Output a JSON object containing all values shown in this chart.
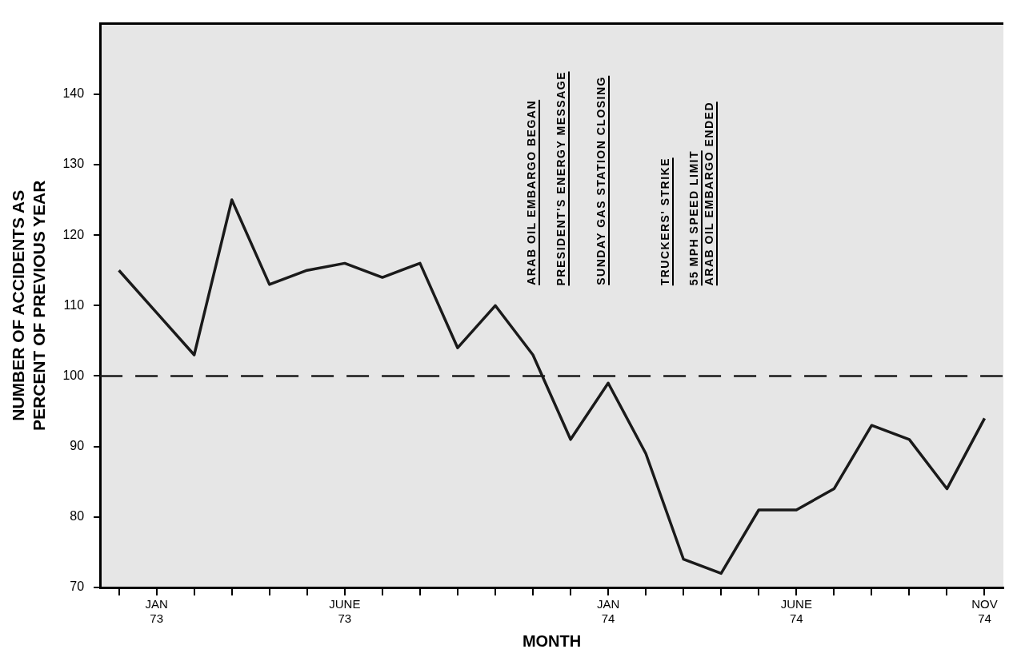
{
  "chart_data": {
    "type": "line",
    "xlabel": "MONTH",
    "ylabel": "NUMBER OF ACCIDENTS AS\nPERCENT OF PREVIOUS YEAR",
    "categories": [
      null,
      "JAN\n73",
      null,
      null,
      null,
      null,
      "JUNE\n73",
      null,
      null,
      null,
      null,
      null,
      null,
      "JAN\n74",
      null,
      null,
      null,
      null,
      "JUNE\n74",
      null,
      null,
      null,
      null,
      "NOV\n74"
    ],
    "series": [
      {
        "color": "#1a1a1a",
        "values": [
          115,
          109,
          103,
          125,
          113,
          115,
          116,
          114,
          116,
          104,
          110,
          103,
          91,
          99,
          89,
          74,
          72,
          81,
          81,
          84,
          93,
          91,
          84,
          94
        ]
      }
    ],
    "ylim": [
      70,
      150
    ],
    "yticks": [
      70,
      80,
      90,
      100,
      110,
      120,
      130,
      140
    ],
    "ref_lines": [
      {
        "axis": "y",
        "value": 100,
        "line_style": "dashed",
        "color": "#1a1a1a"
      }
    ],
    "annotations": [
      "ARAB OIL EMBARGO BEGAN",
      "PRESIDENT'S ENERGY MESSAGE",
      "SUNDAY GAS STATION CLOSING",
      "TRUCKERS' STRIKE",
      "55 MPH SPEED LIMIT",
      "ARAB OIL EMBARGO ENDED"
    ],
    "grid": false,
    "legend": false,
    "marker": "none",
    "line_style": "solid"
  }
}
